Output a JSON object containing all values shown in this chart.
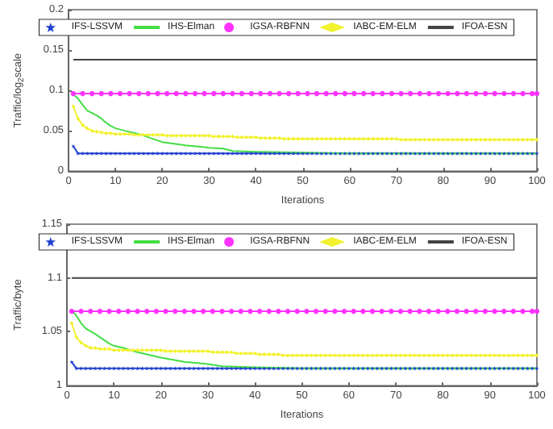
{
  "chart_data": [
    {
      "type": "line",
      "xlabel": "Iterations",
      "ylabel": "Traffic/log$_{2}$scale",
      "xlim": [
        0,
        100
      ],
      "xticks": [
        0,
        10,
        20,
        30,
        40,
        50,
        60,
        70,
        80,
        90,
        100
      ],
      "ylim": [
        0,
        0.2
      ],
      "yticks": [
        0,
        0.05,
        0.1,
        0.15,
        0.2
      ],
      "grid": false,
      "legend": "top",
      "x": [
        1,
        2,
        3,
        4,
        5,
        6,
        7,
        8,
        9,
        10,
        11,
        12,
        13,
        14,
        15,
        16,
        17,
        18,
        19,
        20,
        21,
        22,
        23,
        24,
        25,
        26,
        27,
        28,
        29,
        30,
        31,
        32,
        33,
        34,
        35,
        36,
        37,
        38,
        39,
        40,
        41,
        42,
        43,
        44,
        45,
        46,
        47,
        48,
        49,
        50,
        51,
        52,
        53,
        54,
        55,
        56,
        57,
        58,
        59,
        60,
        61,
        62,
        63,
        64,
        65,
        66,
        67,
        68,
        69,
        70,
        71,
        72,
        73,
        74,
        75,
        76,
        77,
        78,
        79,
        80,
        81,
        82,
        83,
        84,
        85,
        86,
        87,
        88,
        89,
        90,
        91,
        92,
        93,
        94,
        95,
        96,
        97,
        98,
        99,
        100
      ],
      "series": [
        {
          "name": "IFS-LSSVM",
          "color": "#1f3fd0",
          "marker": "star",
          "values": [
            0.031,
            0.022,
            0.022,
            0.022,
            0.022,
            0.022,
            0.022,
            0.022,
            0.022,
            0.022,
            0.022,
            0.022,
            0.022,
            0.022,
            0.022,
            0.022,
            0.022,
            0.022,
            0.022,
            0.022,
            0.022,
            0.022,
            0.022,
            0.022,
            0.022,
            0.022,
            0.022,
            0.022,
            0.022,
            0.022,
            0.022,
            0.022,
            0.022,
            0.022,
            0.022,
            0.022,
            0.022,
            0.022,
            0.022,
            0.022,
            0.022,
            0.022,
            0.022,
            0.022,
            0.022,
            0.022,
            0.022,
            0.022,
            0.022,
            0.022,
            0.022,
            0.022,
            0.022,
            0.022,
            0.022,
            0.022,
            0.022,
            0.022,
            0.022,
            0.022,
            0.022,
            0.022,
            0.022,
            0.022,
            0.022,
            0.022,
            0.022,
            0.022,
            0.022,
            0.022,
            0.022,
            0.022,
            0.022,
            0.022,
            0.022,
            0.022,
            0.022,
            0.022,
            0.022,
            0.022,
            0.022,
            0.022,
            0.022,
            0.022,
            0.022,
            0.022,
            0.022,
            0.022,
            0.022,
            0.022,
            0.022,
            0.022,
            0.022,
            0.022,
            0.022,
            0.022,
            0.022,
            0.022,
            0.022,
            0.022
          ]
        },
        {
          "name": "IHS-Elman",
          "color": "#44dd44",
          "marker": "none",
          "x": [
            1,
            2,
            3,
            4,
            5,
            6,
            7,
            8,
            9,
            10,
            12,
            15,
            18,
            20,
            25,
            30,
            33,
            35,
            40,
            50,
            60,
            100
          ],
          "values": [
            0.095,
            0.09,
            0.082,
            0.075,
            0.072,
            0.069,
            0.065,
            0.06,
            0.056,
            0.053,
            0.05,
            0.046,
            0.04,
            0.036,
            0.032,
            0.029,
            0.028,
            0.025,
            0.024,
            0.023,
            0.022,
            0.022
          ]
        },
        {
          "name": "IGSA-RBFNN",
          "color": "#ff33ff",
          "marker": "circle",
          "x": [
            1,
            3,
            5,
            7,
            9,
            11,
            13,
            15,
            17,
            19,
            21,
            23,
            25,
            27,
            29,
            31,
            33,
            35,
            37,
            39,
            41,
            43,
            45,
            47,
            49,
            51,
            53,
            55,
            57,
            59,
            61,
            63,
            65,
            67,
            69,
            71,
            73,
            75,
            77,
            79,
            81,
            83,
            85,
            87,
            89,
            91,
            93,
            95,
            97,
            99,
            100
          ],
          "values": [
            0.096,
            0.096,
            0.096,
            0.096,
            0.096,
            0.096,
            0.096,
            0.096,
            0.096,
            0.096,
            0.096,
            0.096,
            0.096,
            0.096,
            0.096,
            0.096,
            0.096,
            0.096,
            0.096,
            0.096,
            0.096,
            0.096,
            0.096,
            0.096,
            0.096,
            0.096,
            0.096,
            0.096,
            0.096,
            0.096,
            0.096,
            0.096,
            0.096,
            0.096,
            0.096,
            0.096,
            0.096,
            0.096,
            0.096,
            0.096,
            0.096,
            0.096,
            0.096,
            0.096,
            0.096,
            0.096,
            0.096,
            0.096,
            0.096,
            0.096,
            0.096
          ]
        },
        {
          "name": "IABC-EM-ELM",
          "color": "#f2f230",
          "marker": "diamond",
          "values": [
            0.08,
            0.065,
            0.057,
            0.053,
            0.05,
            0.049,
            0.048,
            0.047,
            0.047,
            0.046,
            0.046,
            0.046,
            0.046,
            0.045,
            0.045,
            0.045,
            0.045,
            0.045,
            0.045,
            0.045,
            0.044,
            0.044,
            0.044,
            0.044,
            0.044,
            0.044,
            0.044,
            0.044,
            0.044,
            0.044,
            0.043,
            0.043,
            0.043,
            0.043,
            0.043,
            0.042,
            0.042,
            0.042,
            0.042,
            0.042,
            0.041,
            0.041,
            0.041,
            0.041,
            0.041,
            0.04,
            0.04,
            0.04,
            0.04,
            0.04,
            0.04,
            0.04,
            0.04,
            0.04,
            0.04,
            0.04,
            0.04,
            0.04,
            0.04,
            0.04,
            0.04,
            0.04,
            0.04,
            0.04,
            0.04,
            0.04,
            0.04,
            0.04,
            0.04,
            0.04,
            0.039,
            0.039,
            0.039,
            0.039,
            0.039,
            0.039,
            0.039,
            0.039,
            0.039,
            0.039,
            0.039,
            0.039,
            0.039,
            0.039,
            0.039,
            0.039,
            0.039,
            0.039,
            0.039,
            0.039,
            0.039,
            0.039,
            0.039,
            0.039,
            0.039,
            0.039,
            0.039,
            0.039,
            0.039,
            0.039
          ]
        },
        {
          "name": "IFOA-ESN",
          "color": "#444444",
          "marker": "none",
          "x": [
            1,
            100
          ],
          "values": [
            0.138,
            0.138
          ]
        }
      ]
    },
    {
      "type": "line",
      "xlabel": "Iterations",
      "ylabel": "Traffic/byte",
      "xlim": [
        0,
        100
      ],
      "xticks": [
        0,
        10,
        20,
        30,
        40,
        50,
        60,
        70,
        80,
        90,
        100
      ],
      "ylim": [
        1,
        1.15
      ],
      "yticks": [
        1,
        1.05,
        1.1,
        1.15
      ],
      "grid": false,
      "legend": "top",
      "x": [
        1,
        2,
        3,
        4,
        5,
        6,
        7,
        8,
        9,
        10,
        11,
        12,
        13,
        14,
        15,
        16,
        17,
        18,
        19,
        20,
        21,
        22,
        23,
        24,
        25,
        26,
        27,
        28,
        29,
        30,
        31,
        32,
        33,
        34,
        35,
        36,
        37,
        38,
        39,
        40,
        41,
        42,
        43,
        44,
        45,
        46,
        47,
        48,
        49,
        50,
        51,
        52,
        53,
        54,
        55,
        56,
        57,
        58,
        59,
        60,
        61,
        62,
        63,
        64,
        65,
        66,
        67,
        68,
        69,
        70,
        71,
        72,
        73,
        74,
        75,
        76,
        77,
        78,
        79,
        80,
        81,
        82,
        83,
        84,
        85,
        86,
        87,
        88,
        89,
        90,
        91,
        92,
        93,
        94,
        95,
        96,
        97,
        98,
        99,
        100
      ],
      "series": [
        {
          "name": "IFS-LSSVM",
          "color": "#1f3fd0",
          "marker": "star",
          "values": [
            1.022,
            1.016,
            1.016,
            1.016,
            1.016,
            1.016,
            1.016,
            1.016,
            1.016,
            1.016,
            1.016,
            1.016,
            1.016,
            1.016,
            1.016,
            1.016,
            1.016,
            1.016,
            1.016,
            1.016,
            1.016,
            1.016,
            1.016,
            1.016,
            1.016,
            1.016,
            1.016,
            1.016,
            1.016,
            1.016,
            1.016,
            1.016,
            1.016,
            1.016,
            1.016,
            1.016,
            1.016,
            1.016,
            1.016,
            1.016,
            1.016,
            1.016,
            1.016,
            1.016,
            1.016,
            1.016,
            1.016,
            1.016,
            1.016,
            1.016,
            1.016,
            1.016,
            1.016,
            1.016,
            1.016,
            1.016,
            1.016,
            1.016,
            1.016,
            1.016,
            1.016,
            1.016,
            1.016,
            1.016,
            1.016,
            1.016,
            1.016,
            1.016,
            1.016,
            1.016,
            1.016,
            1.016,
            1.016,
            1.016,
            1.016,
            1.016,
            1.016,
            1.016,
            1.016,
            1.016,
            1.016,
            1.016,
            1.016,
            1.016,
            1.016,
            1.016,
            1.016,
            1.016,
            1.016,
            1.016,
            1.016,
            1.016,
            1.016,
            1.016,
            1.016,
            1.016,
            1.016,
            1.016,
            1.016,
            1.016
          ]
        },
        {
          "name": "IHS-Elman",
          "color": "#44dd44",
          "marker": "none",
          "x": [
            1,
            2,
            3,
            4,
            6,
            8,
            9,
            10,
            12,
            15,
            20,
            25,
            30,
            33,
            40,
            50,
            100
          ],
          "values": [
            1.07,
            1.065,
            1.058,
            1.053,
            1.048,
            1.042,
            1.039,
            1.037,
            1.035,
            1.031,
            1.026,
            1.022,
            1.02,
            1.018,
            1.017,
            1.016,
            1.016
          ]
        },
        {
          "name": "IGSA-RBFNN",
          "color": "#ff33ff",
          "marker": "circle",
          "x": [
            1,
            3,
            5,
            7,
            9,
            11,
            13,
            15,
            17,
            19,
            21,
            23,
            25,
            27,
            29,
            31,
            33,
            35,
            37,
            39,
            41,
            43,
            45,
            47,
            49,
            51,
            53,
            55,
            57,
            59,
            61,
            63,
            65,
            67,
            69,
            71,
            73,
            75,
            77,
            79,
            81,
            83,
            85,
            87,
            89,
            91,
            93,
            95,
            97,
            99,
            100
          ],
          "values": [
            1.069,
            1.069,
            1.069,
            1.069,
            1.069,
            1.069,
            1.069,
            1.069,
            1.069,
            1.069,
            1.069,
            1.069,
            1.069,
            1.069,
            1.069,
            1.069,
            1.069,
            1.069,
            1.069,
            1.069,
            1.069,
            1.069,
            1.069,
            1.069,
            1.069,
            1.069,
            1.069,
            1.069,
            1.069,
            1.069,
            1.069,
            1.069,
            1.069,
            1.069,
            1.069,
            1.069,
            1.069,
            1.069,
            1.069,
            1.069,
            1.069,
            1.069,
            1.069,
            1.069,
            1.069,
            1.069,
            1.069,
            1.069,
            1.069,
            1.069,
            1.069
          ]
        },
        {
          "name": "IABC-EM-ELM",
          "color": "#f2f230",
          "marker": "diamond",
          "values": [
            1.058,
            1.045,
            1.04,
            1.037,
            1.035,
            1.035,
            1.034,
            1.034,
            1.034,
            1.033,
            1.033,
            1.033,
            1.033,
            1.033,
            1.033,
            1.033,
            1.033,
            1.033,
            1.033,
            1.033,
            1.032,
            1.032,
            1.032,
            1.032,
            1.032,
            1.032,
            1.032,
            1.032,
            1.032,
            1.032,
            1.031,
            1.031,
            1.031,
            1.031,
            1.031,
            1.03,
            1.03,
            1.03,
            1.03,
            1.03,
            1.029,
            1.029,
            1.029,
            1.029,
            1.029,
            1.028,
            1.028,
            1.028,
            1.028,
            1.028,
            1.028,
            1.028,
            1.028,
            1.028,
            1.028,
            1.028,
            1.028,
            1.028,
            1.028,
            1.028,
            1.028,
            1.028,
            1.028,
            1.028,
            1.028,
            1.028,
            1.028,
            1.028,
            1.028,
            1.028,
            1.028,
            1.028,
            1.028,
            1.028,
            1.028,
            1.028,
            1.028,
            1.028,
            1.028,
            1.028,
            1.028,
            1.028,
            1.028,
            1.028,
            1.028,
            1.028,
            1.028,
            1.028,
            1.028,
            1.028,
            1.028,
            1.028,
            1.028,
            1.028,
            1.028,
            1.028,
            1.028,
            1.028,
            1.028,
            1.028
          ]
        },
        {
          "name": "IFOA-ESN",
          "color": "#444444",
          "marker": "none",
          "x": [
            1,
            100
          ],
          "values": [
            1.1,
            1.1
          ]
        }
      ]
    }
  ]
}
